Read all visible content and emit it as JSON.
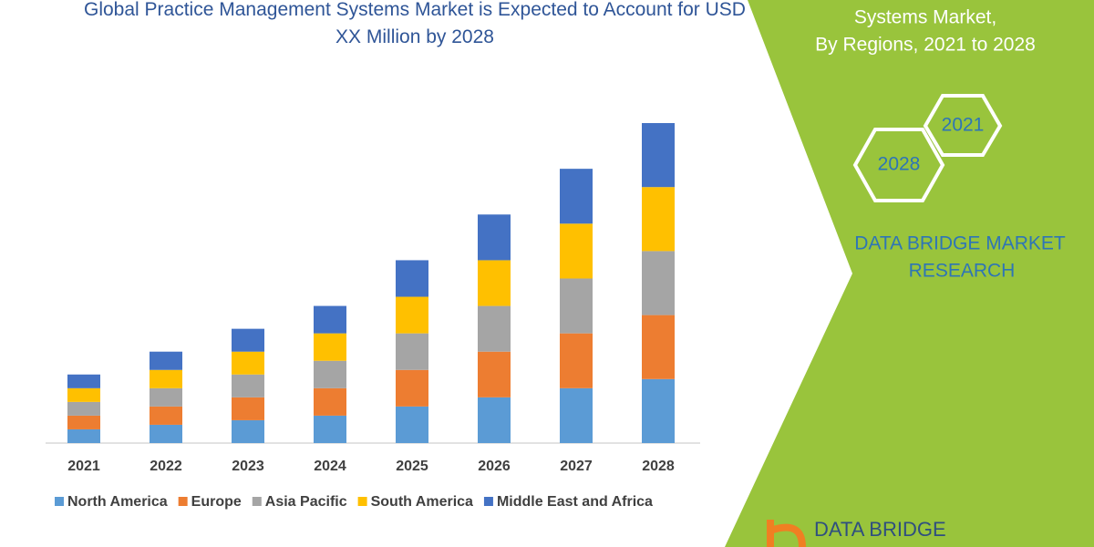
{
  "chart_data": {
    "type": "bar",
    "stacked": true,
    "title": "Global Practice Management Systems Market is Expected to Account for USD XX Million by 2028",
    "categories": [
      "2021",
      "2022",
      "2023",
      "2024",
      "2025",
      "2026",
      "2027",
      "2028"
    ],
    "series": [
      {
        "name": "North America",
        "color": "#5b9bd5",
        "values": [
          15,
          20,
          25,
          30,
          40,
          50,
          60,
          70
        ]
      },
      {
        "name": "Europe",
        "color": "#ed7d31",
        "values": [
          15,
          20,
          25,
          30,
          40,
          50,
          60,
          70
        ]
      },
      {
        "name": "Asia Pacific",
        "color": "#a5a5a5",
        "values": [
          15,
          20,
          25,
          30,
          40,
          50,
          60,
          70
        ]
      },
      {
        "name": "South America",
        "color": "#ffc000",
        "values": [
          15,
          20,
          25,
          30,
          40,
          50,
          60,
          70
        ]
      },
      {
        "name": "Middle East and Africa",
        "color": "#4472c4",
        "values": [
          15,
          20,
          25,
          30,
          40,
          50,
          60,
          70
        ]
      }
    ],
    "legend": "bottom"
  },
  "panel": {
    "subtitle_lines": [
      "Systems Market,",
      "By Regions, 2021 to 2028"
    ],
    "hexagons": [
      "2021",
      "2028"
    ],
    "brand_lines": [
      "DATA BRIDGE MARKET",
      "RESEARCH"
    ],
    "logo": "DATA BRIDGE"
  }
}
